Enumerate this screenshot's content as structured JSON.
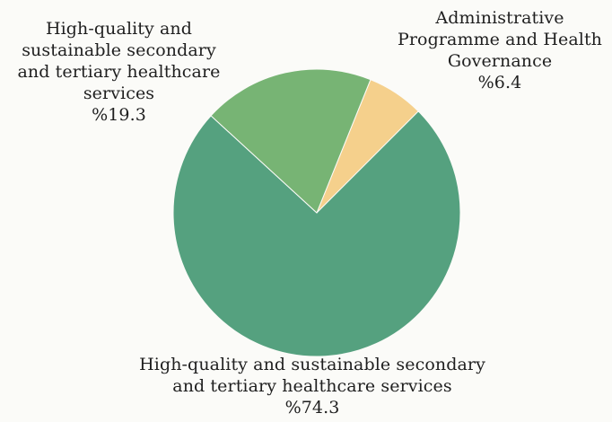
{
  "chart_data": {
    "type": "pie",
    "title": "",
    "slices": [
      {
        "label": "Administrative Programme and Health Governance",
        "label_lines": [
          "Administrative",
          "Programme and Health",
          "Governance"
        ],
        "value": 6.4,
        "value_text": "%6.4",
        "color": "#f5d08c"
      },
      {
        "label": "High-quality and sustainable secondary and tertiary healthcare services",
        "label_lines": [
          "High-quality and sustainable secondary",
          "and tertiary healthcare services"
        ],
        "value": 74.3,
        "value_text": "%74.3",
        "color": "#55a17f"
      },
      {
        "label": "High-quality and sustainable secondary and tertiary healthcare services",
        "label_lines": [
          "High-quality and",
          "sustainable secondary",
          "and tertiary healthcare",
          "services"
        ],
        "value": 19.3,
        "value_text": "%19.3",
        "color": "#77b474"
      }
    ],
    "legend": "none",
    "start_angle_deg": 0,
    "direction": "clockwise"
  }
}
